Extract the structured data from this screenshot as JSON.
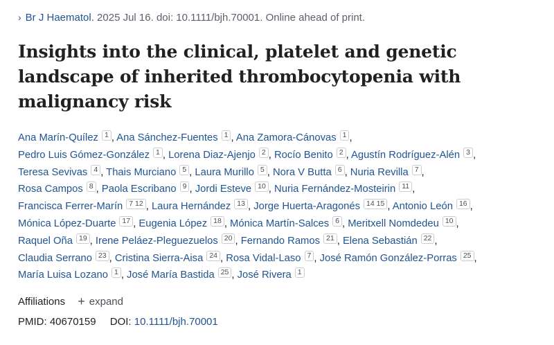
{
  "citation": {
    "journal": "Br J Haematol.",
    "rest": " 2025 Jul 16. doi: 10.1111/bjh.70001. Online ahead of print."
  },
  "title": "Insights into the clinical, platelet and genetic landscape of inherited thrombocytopenia with malignancy risk",
  "author_lines": [
    [
      {
        "name": "Ana Marín-Quílez",
        "aff": "1"
      },
      {
        "name": "Ana Sánchez-Fuentes",
        "aff": "1"
      },
      {
        "name": "Ana Zamora-Cánovas",
        "aff": "1"
      }
    ],
    [
      {
        "name": "Pedro Luis Gómez-González",
        "aff": "1"
      },
      {
        "name": "Lorena Diaz-Ajenjo",
        "aff": "2"
      },
      {
        "name": "Rocío Benito",
        "aff": "2"
      },
      {
        "name": "Agustín Rodríguez-Alén",
        "aff": "3"
      }
    ],
    [
      {
        "name": "Teresa Sevivas",
        "aff": "4"
      },
      {
        "name": "Thais Murciano",
        "aff": "5"
      },
      {
        "name": "Laura Murillo",
        "aff": "5"
      },
      {
        "name": "Nora V Butta",
        "aff": "6"
      },
      {
        "name": "Nuria Revilla",
        "aff": "7"
      }
    ],
    [
      {
        "name": "Rosa Campos",
        "aff": "8"
      },
      {
        "name": "Paola Escribano",
        "aff": "9"
      },
      {
        "name": "Jordi Esteve",
        "aff": "10"
      },
      {
        "name": "Nuria Fernández-Mosteirin",
        "aff": "11"
      }
    ],
    [
      {
        "name": "Francisca Ferrer-Marín",
        "aff": "7 12"
      },
      {
        "name": "Laura Hernández",
        "aff": "13"
      },
      {
        "name": "Jorge Huerta-Aragonés",
        "aff": "14 15"
      },
      {
        "name": "Antonio León",
        "aff": "16"
      }
    ],
    [
      {
        "name": "Mónica López-Duarte",
        "aff": "17"
      },
      {
        "name": "Eugenia López",
        "aff": "18"
      },
      {
        "name": "Mónica Martín-Salces",
        "aff": "6"
      },
      {
        "name": "Meritxell Nomdedeu",
        "aff": "10"
      }
    ],
    [
      {
        "name": "Raquel Oña",
        "aff": "19"
      },
      {
        "name": "Irene Peláez-Pleguezuelos",
        "aff": "20"
      },
      {
        "name": "Fernando Ramos",
        "aff": "21"
      },
      {
        "name": "Elena Sebastián",
        "aff": "22"
      }
    ],
    [
      {
        "name": "Claudia Serrano",
        "aff": "23"
      },
      {
        "name": "Cristina Sierra-Aisa",
        "aff": "24"
      },
      {
        "name": "Rosa Vidal-Laso",
        "aff": "7"
      },
      {
        "name": "José Ramón González-Porras",
        "aff": "25"
      }
    ],
    [
      {
        "name": "María Luisa Lozano",
        "aff": "1"
      },
      {
        "name": "José María Bastida",
        "aff": "25"
      },
      {
        "name": "José Rivera",
        "aff": "1"
      }
    ]
  ],
  "affiliations": {
    "label": "Affiliations",
    "expand_label": "expand"
  },
  "ids": {
    "pmid_label": "PMID:",
    "pmid": "40670159",
    "doi_label": "DOI:",
    "doi": "10.1111/bjh.70001"
  },
  "colors": {
    "link": "#205493",
    "text": "#212121",
    "muted": "#5b616b"
  },
  "icons": {
    "chevron": "chevron-right-icon",
    "plus": "plus-icon"
  }
}
